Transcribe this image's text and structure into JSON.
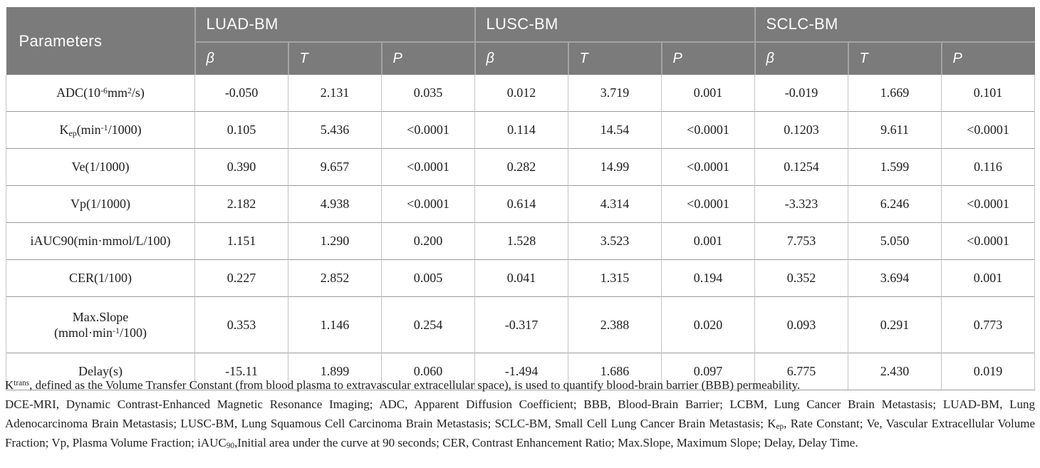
{
  "table": {
    "header": {
      "parameters": "Parameters",
      "groups": [
        {
          "label": "LUAD-BM"
        },
        {
          "label": "LUSC-BM"
        },
        {
          "label": "SCLC-BM"
        }
      ],
      "subcolumns": [
        "β",
        "T",
        "P"
      ]
    },
    "rows": [
      {
        "param": [
          [
            "t",
            "ADC(10"
          ],
          [
            "sup",
            "-6"
          ],
          [
            "t",
            "mm"
          ],
          [
            "sup",
            "2"
          ],
          [
            "t",
            "/s)"
          ]
        ],
        "values": [
          "-0.050",
          "2.131",
          "0.035",
          "0.012",
          "3.719",
          "0.001",
          "-0.019",
          "1.669",
          "0.101"
        ]
      },
      {
        "param": [
          [
            "t",
            "K"
          ],
          [
            "sub",
            "ep"
          ],
          [
            "t",
            "(min"
          ],
          [
            "sup",
            "-1"
          ],
          [
            "t",
            "/1000)"
          ]
        ],
        "values": [
          "0.105",
          "5.436",
          "<0.0001",
          "0.114",
          "14.54",
          "<0.0001",
          "0.1203",
          "9.611",
          "<0.0001"
        ]
      },
      {
        "param": [
          [
            "t",
            "Ve(1/1000)"
          ]
        ],
        "values": [
          "0.390",
          "9.657",
          "<0.0001",
          "0.282",
          "14.99",
          "<0.0001",
          "0.1254",
          "1.599",
          "0.116"
        ]
      },
      {
        "param": [
          [
            "t",
            "Vp(1/1000)"
          ]
        ],
        "values": [
          "2.182",
          "4.938",
          "<0.0001",
          "0.614",
          "4.314",
          "<0.0001",
          "-3.323",
          "6.246",
          "<0.0001"
        ]
      },
      {
        "param": [
          [
            "t",
            "iAUC90(min·mmol/L/100)"
          ]
        ],
        "values": [
          "1.151",
          "1.290",
          "0.200",
          "1.528",
          "3.523",
          "0.001",
          "7.753",
          "5.050",
          "<0.0001"
        ]
      },
      {
        "param": [
          [
            "t",
            "CER(1/100)"
          ]
        ],
        "values": [
          "0.227",
          "2.852",
          "0.005",
          "0.041",
          "1.315",
          "0.194",
          "0.352",
          "3.694",
          "0.001"
        ]
      },
      {
        "param": [
          [
            "t",
            "Max.Slope"
          ],
          [
            "br",
            ""
          ],
          [
            "t",
            "(mmol·min"
          ],
          [
            "sup",
            "-1"
          ],
          [
            "t",
            "/100)"
          ]
        ],
        "values": [
          "0.353",
          "1.146",
          "0.254",
          "-0.317",
          "2.388",
          "0.020",
          "0.093",
          "0.291",
          "0.773"
        ]
      },
      {
        "param": [
          [
            "t",
            "Delay(s)"
          ]
        ],
        "values": [
          "-15.11",
          "1.899",
          "0.060",
          "-1.494",
          "1.686",
          "0.097",
          "6.775",
          "2.430",
          "0.019"
        ]
      }
    ]
  },
  "footnote": {
    "p1_pre": "K",
    "p1_sup": "trans",
    "p1_post": ", defined as the Volume Transfer Constant (from blood plasma to extravascular extracellular space), is used to quantify blood-brain barrier (BBB) permeability.",
    "p2_a": "DCE-MRI, Dynamic Contrast-Enhanced Magnetic Resonance Imaging; ADC, Apparent Diffusion Coefficient; BBB, Blood-Brain Barrier; LCBM, Lung Cancer Brain Metastasis; LUAD-BM, Lung Adenocarcinoma Brain Metastasis; LUSC-BM, Lung Squamous Cell Carcinoma Brain Metastasis; SCLC-BM, Small Cell Lung Cancer Brain Metastasis; K",
    "p2_sub1": "ep",
    "p2_b": ", Rate Constant; Ve, Vascular Extracellular Volume Fraction; Vp, Plasma Volume Fraction; iAUC",
    "p2_sub2": "90",
    "p2_c": ",Initial area under the curve at 90 seconds; CER, Contrast Enhancement Ratio; Max.Slope, Maximum Slope; Delay, Delay Time."
  },
  "colors": {
    "header_bg": "#7b7b7b",
    "header_text": "#fdfdfd",
    "header_divider": "#a4a4a4",
    "row_border": "#9c9c9c",
    "col_border": "#c4c4c4",
    "body_text": "#1d1d1d"
  }
}
